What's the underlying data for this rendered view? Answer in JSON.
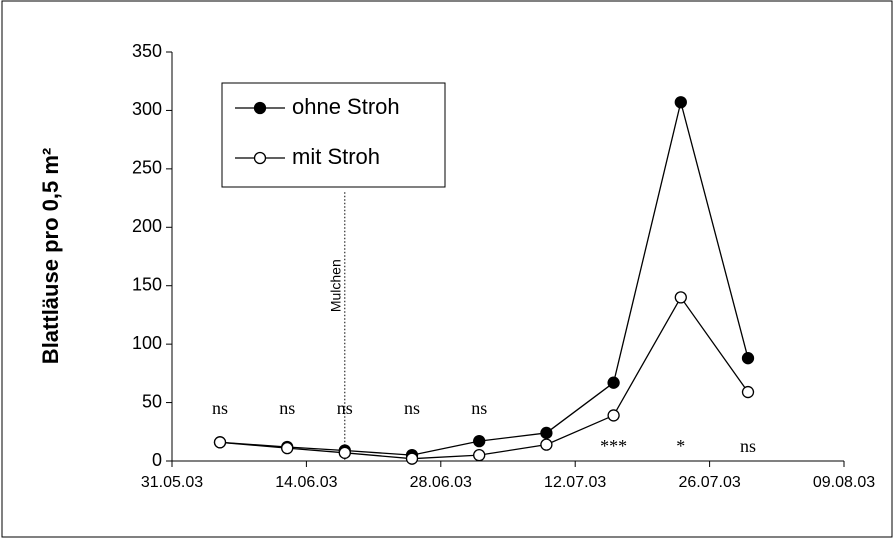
{
  "chart_data": {
    "type": "line",
    "y_label": "Blattläuse pro 0,5 m²",
    "x": [
      "2003-06-05",
      "2003-06-12",
      "2003-06-18",
      "2003-06-25",
      "2003-07-02",
      "2003-07-09",
      "2003-07-16",
      "2003-07-23",
      "2003-07-30"
    ],
    "series": [
      {
        "name": "ohne Stroh",
        "color": "#000000",
        "marker": "filled",
        "values": [
          16,
          12,
          9,
          5,
          17,
          24,
          67,
          307,
          88
        ]
      },
      {
        "name": "mit Stroh",
        "color": "#000000",
        "marker": "open",
        "values": [
          16,
          11,
          7,
          2,
          5,
          14,
          39,
          140,
          59
        ]
      }
    ],
    "xlim": [
      "2003-05-31",
      "2003-08-09"
    ],
    "xticks": [
      {
        "value": "2003-05-31",
        "label": "31.05.03"
      },
      {
        "value": "2003-06-14",
        "label": "14.06.03"
      },
      {
        "value": "2003-06-28",
        "label": "28.06.03"
      },
      {
        "value": "2003-07-12",
        "label": "12.07.03"
      },
      {
        "value": "2003-07-26",
        "label": "26.07.03"
      },
      {
        "value": "2003-08-09",
        "label": "09.08.03"
      }
    ],
    "ylim": [
      0,
      350
    ],
    "yticks": [
      0,
      50,
      100,
      150,
      200,
      250,
      300,
      350
    ],
    "vline": {
      "x": "2003-06-18",
      "label": "Mulchen"
    },
    "annotations": [
      {
        "x": "2003-06-05",
        "text": "ns"
      },
      {
        "x": "2003-06-12",
        "text": "ns"
      },
      {
        "x": "2003-06-18",
        "text": "ns"
      },
      {
        "x": "2003-06-25",
        "text": "ns"
      },
      {
        "x": "2003-07-02",
        "text": "ns"
      },
      {
        "x": "2003-07-16",
        "text": "***"
      },
      {
        "x": "2003-07-23",
        "text": "*"
      },
      {
        "x": "2003-07-30",
        "text": "ns"
      }
    ],
    "legend": "upper left"
  }
}
